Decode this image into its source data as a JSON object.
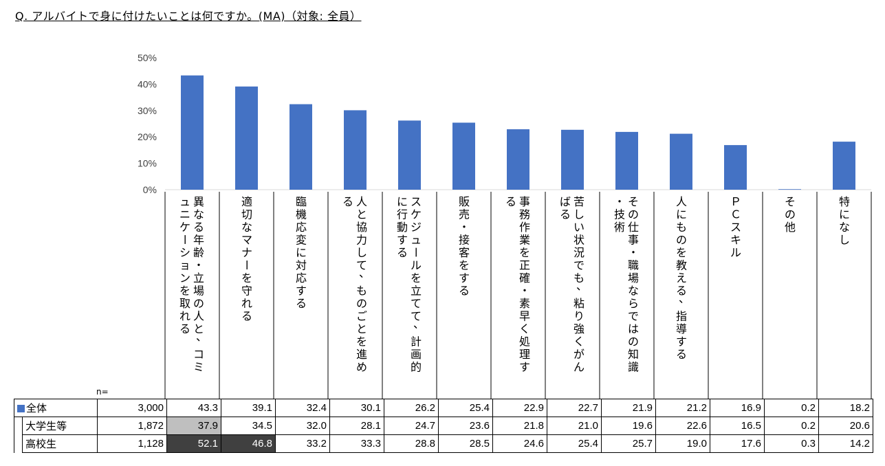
{
  "question": "Q. アルバイトで身に付けたいことは何ですか。(MA)（対象: 全員）",
  "n_label": "n=",
  "chart_data": {
    "type": "bar",
    "categories": [
      "異なる年齢・立場の人と、コミュニケーションを取れる",
      "適切なマナーを守れる",
      "臨機応変に対応する",
      "人と協力して、ものごとを進める",
      "スケジュールを立てて、計画的に行動する",
      "販売・接客をする",
      "事務作業を正確・素早く処理する",
      "苦しい状況でも、粘り強くがんばる",
      "その仕事・職場ならではの知識・技術",
      "人にものを教える、指導する",
      "ＰＣスキル",
      "その他",
      "特になし"
    ],
    "series": [
      {
        "name": "全体",
        "n": "3,000",
        "values": [
          43.3,
          39.1,
          32.4,
          30.1,
          26.2,
          25.4,
          22.9,
          22.7,
          21.9,
          21.2,
          16.9,
          0.2,
          18.2
        ]
      },
      {
        "name": "大学生等",
        "n": "1,872",
        "values": [
          37.9,
          34.5,
          32.0,
          28.1,
          24.7,
          23.6,
          21.8,
          21.0,
          19.6,
          22.6,
          16.5,
          0.2,
          20.6
        ]
      },
      {
        "name": "高校生",
        "n": "1,128",
        "values": [
          52.1,
          46.8,
          33.2,
          33.3,
          28.8,
          28.5,
          24.6,
          25.4,
          25.7,
          19.0,
          17.6,
          0.3,
          14.2
        ]
      }
    ],
    "plotted_series": "全体",
    "yticks": [
      "0%",
      "10%",
      "20%",
      "30%",
      "40%",
      "50%"
    ],
    "ylim": [
      0,
      50
    ],
    "highlight": {
      "light": [
        [
          1,
          0
        ]
      ],
      "dark": [
        [
          2,
          0
        ],
        [
          2,
          1
        ]
      ]
    },
    "colors": {
      "bar": "#4472C4",
      "light": "#BFBFBF",
      "dark": "#404040"
    }
  }
}
